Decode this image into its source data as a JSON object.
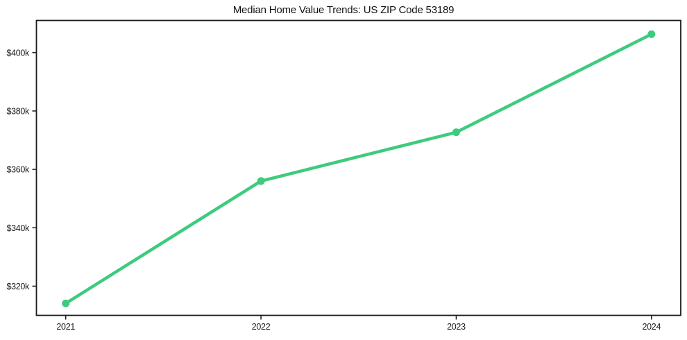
{
  "page": {
    "background_color": "#ffffff"
  },
  "chart_data": {
    "type": "line",
    "title": "Median Home Value Trends: US ZIP Code 53189",
    "xlabel": "",
    "ylabel": "",
    "x": [
      2021,
      2022,
      2023,
      2024
    ],
    "x_tick_labels": [
      "2021",
      "2022",
      "2023",
      "2024"
    ],
    "series": [
      {
        "name": "median_home_value_usd",
        "values": [
          314100,
          356000,
          372700,
          406300
        ],
        "color": "#3dcb7d",
        "marker": "circle"
      }
    ],
    "y_ticks": [
      {
        "value": 320000,
        "label": "$320k"
      },
      {
        "value": 340000,
        "label": "$340k"
      },
      {
        "value": 360000,
        "label": "$360k"
      },
      {
        "value": 380000,
        "label": "$380k"
      },
      {
        "value": 400000,
        "label": "$400k"
      }
    ],
    "xlim": [
      2020.85,
      2024.15
    ],
    "ylim": [
      310000,
      411000
    ],
    "grid": false,
    "legend": false,
    "axis_color": "#1a1a1a",
    "text_color": "#1a1a1a"
  }
}
